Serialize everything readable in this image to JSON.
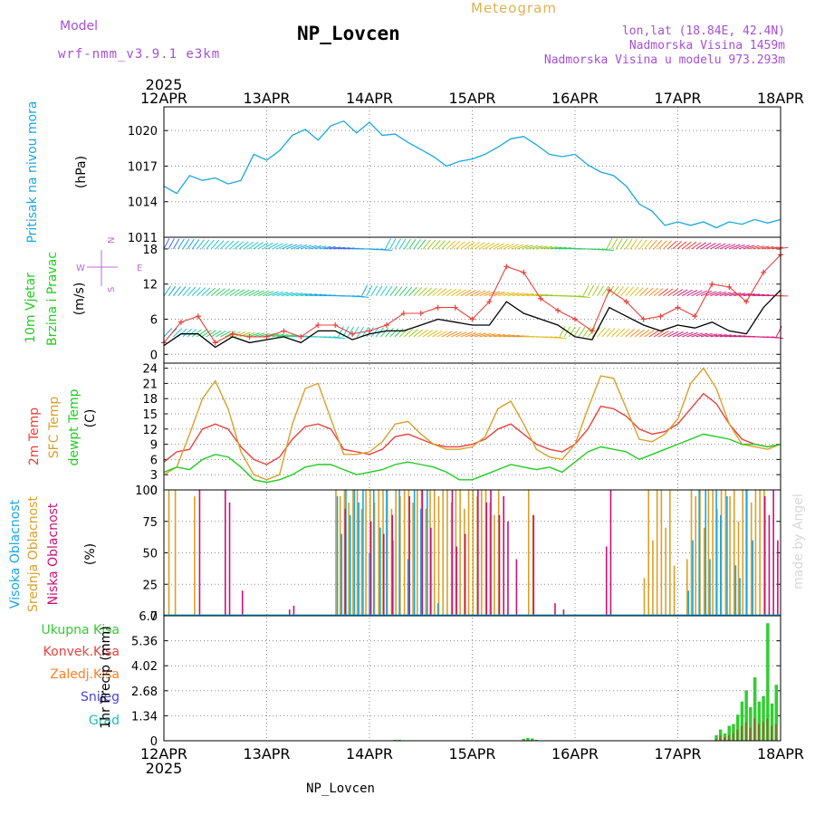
{
  "header": {
    "model_label": "Model",
    "model_name": "wrf-nmm_v3.9.1 e3km",
    "title": "NP_Lovcen",
    "subtitle": "Meteogram",
    "lonlat": "lon,lat (18.84E, 42.4N)",
    "elevation": "Nadmorska Visina 1459m",
    "model_elevation": "Nadmorska Visina u modelu 973.293m",
    "watermark": "made by Angel",
    "footer": "NP_Lovcen"
  },
  "time_axis": {
    "year": "2025",
    "days": [
      "12APR",
      "13APR",
      "14APR",
      "15APR",
      "16APR",
      "17APR",
      "18APR"
    ]
  },
  "colors": {
    "pressure": "#1aa7e0",
    "wind_speed": "#000000",
    "gust": "#e8413c",
    "t2m": "#e8413c",
    "tsfc": "#d9a02a",
    "dewpt": "#22cc22",
    "high_cloud": "#1aa7e0",
    "mid_cloud": "#d9a02a",
    "low_cloud": "#cc1177",
    "total_precip": "#33cc33",
    "conv_precip": "#e8413c",
    "freezing_precip": "#ff7f27",
    "snow": "#4444dd",
    "graupel": "#22bbbb",
    "title_purple": "#a64fd6",
    "meteogram_gold": "#e0b050"
  },
  "chart_data": [
    {
      "type": "line",
      "panel": "pressure",
      "label_main": "Pritisak na nivou mora",
      "label_unit": "(hPa)",
      "yticks": [
        "1011",
        "1014",
        "1017",
        "1020"
      ],
      "ylim": [
        1011,
        1022
      ],
      "x_hours": [
        0,
        3,
        6,
        9,
        12,
        15,
        18,
        21,
        24,
        27,
        30,
        33,
        36,
        39,
        42,
        45,
        48,
        51,
        54,
        57,
        60,
        63,
        66,
        69,
        72,
        75,
        78,
        81,
        84,
        87,
        90,
        93,
        96,
        99,
        102,
        105,
        108,
        111,
        114,
        117,
        120,
        123,
        126,
        129,
        132,
        135,
        138,
        141,
        144
      ],
      "values": [
        1015.3,
        1014.7,
        1016.2,
        1015.8,
        1016.0,
        1015.5,
        1015.8,
        1018.0,
        1017.5,
        1018.3,
        1019.6,
        1020.1,
        1019.2,
        1020.4,
        1020.8,
        1019.8,
        1020.7,
        1019.6,
        1019.7,
        1019.0,
        1018.4,
        1017.8,
        1017.0,
        1017.4,
        1017.6,
        1018.0,
        1018.6,
        1019.3,
        1019.5,
        1018.8,
        1018.0,
        1017.8,
        1018.0,
        1017.1,
        1016.5,
        1016.2,
        1015.3,
        1013.8,
        1013.2,
        1012.0,
        1012.3,
        1012.0,
        1012.3,
        1011.8,
        1012.3,
        1012.1,
        1012.5,
        1012.2,
        1012.5
      ]
    },
    {
      "type": "line",
      "panel": "wind",
      "label_main": "10m Vjetar",
      "label_sub": "Brzina i Pravac",
      "label_unit": "(m/s)",
      "compass": [
        "N",
        "S",
        "W",
        "E"
      ],
      "yticks": [
        "0",
        "6",
        "12",
        "18"
      ],
      "ylim": [
        -1.5,
        20
      ],
      "series": [
        {
          "name": "wind speed",
          "x_hours": [
            0,
            4,
            8,
            12,
            16,
            20,
            24,
            28,
            32,
            36,
            40,
            44,
            48,
            52,
            56,
            60,
            64,
            68,
            72,
            76,
            80,
            84,
            88,
            92,
            96,
            100,
            104,
            108,
            112,
            116,
            120,
            124,
            128,
            132,
            136,
            140,
            144
          ],
          "values": [
            1.5,
            3.5,
            3.5,
            1.2,
            3.0,
            2.0,
            2.5,
            3.0,
            2.0,
            4.0,
            4.0,
            2.5,
            3.5,
            4.0,
            4.0,
            5.0,
            6.0,
            5.5,
            5.0,
            5.0,
            9.0,
            7.0,
            6.0,
            5.0,
            3.0,
            2.5,
            8.0,
            6.5,
            5.0,
            4.0,
            5.0,
            4.5,
            5.5,
            4.0,
            3.5,
            8.0,
            11.0
          ]
        },
        {
          "name": "wind gust",
          "x_hours": [
            0,
            4,
            8,
            12,
            16,
            20,
            24,
            28,
            32,
            36,
            40,
            44,
            48,
            52,
            56,
            60,
            64,
            68,
            72,
            76,
            80,
            84,
            88,
            92,
            96,
            100,
            104,
            108,
            112,
            116,
            120,
            124,
            128,
            132,
            136,
            140,
            144
          ],
          "values": [
            2.0,
            5.5,
            6.5,
            2.0,
            3.5,
            3.0,
            3.0,
            4.0,
            3.0,
            5.0,
            5.0,
            3.5,
            4.0,
            5.0,
            7.0,
            7.0,
            8.0,
            8.0,
            6.0,
            9.0,
            15.0,
            14.0,
            9.5,
            7.5,
            6.0,
            4.0,
            11.0,
            9.0,
            6.0,
            6.5,
            8.0,
            6.5,
            12.0,
            11.5,
            9.0,
            14.0,
            17.0
          ]
        }
      ]
    },
    {
      "type": "line",
      "panel": "temperature",
      "label_t2m": "2m Temp",
      "label_sfc": "SFC Temp",
      "label_dew": "dewpt Temp",
      "label_unit": "(C)",
      "yticks": [
        "0",
        "3",
        "6",
        "9",
        "12",
        "15",
        "18",
        "21",
        "24"
      ],
      "ylim": [
        0,
        25
      ],
      "x_hours": [
        0,
        3,
        6,
        9,
        12,
        15,
        18,
        21,
        24,
        27,
        30,
        33,
        36,
        39,
        42,
        45,
        48,
        51,
        54,
        57,
        60,
        63,
        66,
        69,
        72,
        75,
        78,
        81,
        84,
        87,
        90,
        93,
        96,
        99,
        102,
        105,
        108,
        111,
        114,
        117,
        120,
        123,
        126,
        129,
        132,
        135,
        138,
        141,
        144
      ],
      "series": [
        {
          "name": "2m Temp",
          "values": [
            5.5,
            7.5,
            8.0,
            12.0,
            13.0,
            12.0,
            8.5,
            6.0,
            5.0,
            6.5,
            10.0,
            12.5,
            13.0,
            12.0,
            8.0,
            7.5,
            7.0,
            8.0,
            10.5,
            11.0,
            10.0,
            9.0,
            8.5,
            8.5,
            9.0,
            10.0,
            12.0,
            13.0,
            11.0,
            9.0,
            8.0,
            7.5,
            9.0,
            12.0,
            16.5,
            16.0,
            14.5,
            12.0,
            11.0,
            11.5,
            13.0,
            16.0,
            19.0,
            17.0,
            13.0,
            10.0,
            9.0,
            8.5,
            9.0
          ]
        },
        {
          "name": "SFC Temp",
          "values": [
            3.0,
            4.5,
            11.0,
            18.0,
            21.5,
            16.0,
            7.5,
            3.0,
            2.0,
            3.0,
            13.0,
            20.0,
            21.0,
            14.0,
            7.0,
            7.0,
            7.5,
            9.5,
            13.0,
            13.5,
            11.0,
            9.0,
            8.0,
            8.0,
            8.5,
            10.5,
            16.0,
            17.5,
            13.0,
            8.0,
            6.5,
            6.0,
            9.0,
            16.0,
            22.5,
            22.0,
            16.0,
            10.0,
            9.5,
            11.0,
            14.0,
            21.0,
            24.0,
            20.0,
            13.0,
            9.0,
            8.5,
            8.0,
            9.0
          ]
        },
        {
          "name": "dewpt Temp",
          "values": [
            3.5,
            4.5,
            4.0,
            6.0,
            7.0,
            6.5,
            4.5,
            2.0,
            1.5,
            2.0,
            3.0,
            4.5,
            5.0,
            5.0,
            4.0,
            3.0,
            3.5,
            4.0,
            5.0,
            5.5,
            5.0,
            4.5,
            3.5,
            2.0,
            2.0,
            3.0,
            4.0,
            5.0,
            4.5,
            4.0,
            4.5,
            3.5,
            5.5,
            7.5,
            8.5,
            8.0,
            7.5,
            6.0,
            7.0,
            8.0,
            9.0,
            10.0,
            11.0,
            10.5,
            10.0,
            9.0,
            9.0,
            8.5,
            9.0
          ]
        }
      ]
    },
    {
      "type": "bar",
      "panel": "cloud",
      "label_high": "Visoka Oblacnost",
      "label_mid": "Srednja Oblacnost",
      "label_low": "Niska Oblacnost",
      "label_unit": "(%)",
      "yticks": [
        "0",
        "25",
        "50",
        "75",
        "100"
      ],
      "ylim": [
        0,
        100
      ],
      "series": [
        {
          "name": "Visoka Oblacnost",
          "x_hours": [
            40.5,
            41.5,
            42.5,
            43.5,
            44.5,
            45.5,
            46.5,
            48,
            49,
            50.5,
            52,
            53.5,
            55,
            57,
            58.5,
            60,
            61.5,
            64,
            122.5,
            123.5,
            125,
            126.5,
            127.5,
            129,
            130,
            131.5,
            133.5,
            134.5,
            136,
            137.5
          ],
          "values": [
            95,
            65,
            100,
            80,
            100,
            90,
            100,
            50,
            100,
            70,
            100,
            60,
            100,
            45,
            100,
            85,
            100,
            10,
            20,
            60,
            100,
            100,
            45,
            100,
            80,
            95,
            40,
            30,
            100,
            60
          ]
        },
        {
          "name": "Srednja Oblacnost",
          "x_hours": [
            1,
            2.5,
            7,
            40,
            41,
            42,
            43,
            44,
            45,
            46,
            47,
            48,
            49,
            50,
            51,
            52,
            53,
            54,
            55,
            56,
            57,
            58,
            59,
            60,
            61,
            62,
            63,
            64,
            65,
            66,
            67,
            68,
            69,
            70,
            71,
            72,
            73,
            74,
            75,
            76,
            77,
            78,
            85,
            86,
            112,
            113,
            114,
            115,
            116,
            117,
            118,
            119,
            122,
            123,
            124,
            125,
            126,
            127,
            128,
            129,
            130,
            131,
            132,
            133,
            134,
            135,
            136,
            137,
            138,
            139,
            140
          ],
          "values": [
            100,
            100,
            95,
            100,
            95,
            100,
            90,
            100,
            100,
            85,
            100,
            100,
            90,
            100,
            100,
            100,
            85,
            100,
            95,
            100,
            100,
            90,
            100,
            100,
            85,
            100,
            100,
            95,
            100,
            100,
            90,
            100,
            100,
            85,
            100,
            100,
            95,
            100,
            100,
            90,
            80,
            100,
            100,
            80,
            30,
            100,
            60,
            100,
            100,
            70,
            100,
            40,
            45,
            100,
            95,
            100,
            70,
            100,
            100,
            85,
            100,
            100,
            95,
            100,
            75,
            100,
            100,
            90,
            100,
            100,
            100
          ]
        },
        {
          "name": "Niska Oblacnost",
          "x_hours": [
            8,
            14,
            15,
            18,
            29,
            30,
            42,
            48,
            51,
            53,
            57,
            60,
            62,
            67,
            68,
            70,
            73,
            75,
            76,
            78,
            79,
            80,
            82,
            86,
            91,
            93,
            103,
            104,
            140,
            141,
            142,
            143
          ],
          "values": [
            100,
            100,
            90,
            20,
            5,
            8,
            85,
            75,
            65,
            80,
            95,
            100,
            70,
            100,
            55,
            65,
            100,
            90,
            100,
            80,
            95,
            75,
            45,
            80,
            10,
            5,
            55,
            100,
            95,
            80,
            100,
            60
          ]
        }
      ]
    },
    {
      "type": "bar",
      "panel": "precip",
      "label_total": "Ukupna Kisa",
      "label_conv": "Konvek.Kisa",
      "label_frz": "Zaledj.Kisa",
      "label_snow": "Snijeg",
      "label_graupel": "Grad",
      "label_unit": "1hr Precip (mm)",
      "yticks": [
        "0",
        "1.34",
        "2.68",
        "4.02",
        "5.36",
        "6.7"
      ],
      "ylim": [
        0,
        6.7
      ],
      "series": [
        {
          "name": "Ukupna Kisa",
          "x_hours": [
            54,
            55,
            84,
            85,
            86,
            87,
            129,
            130,
            131,
            132,
            133,
            134,
            135,
            136,
            137,
            138,
            139,
            140,
            141,
            142,
            143
          ],
          "values": [
            0.05,
            0.05,
            0.1,
            0.15,
            0.12,
            0.05,
            0.3,
            0.6,
            0.4,
            0.8,
            0.9,
            1.4,
            2.1,
            2.7,
            1.8,
            3.4,
            2.1,
            2.4,
            6.3,
            2.0,
            3.0
          ]
        },
        {
          "name": "Konvek.Kisa",
          "x_hours": [
            129,
            130,
            131,
            132,
            133,
            134,
            135,
            136,
            137,
            138,
            139,
            140,
            141,
            142,
            143
          ],
          "values": [
            0.1,
            0.3,
            0.2,
            0.3,
            0.4,
            0.6,
            0.8,
            1.0,
            0.7,
            1.2,
            0.9,
            1.0,
            1.2,
            0.8,
            0.9
          ]
        }
      ]
    }
  ]
}
